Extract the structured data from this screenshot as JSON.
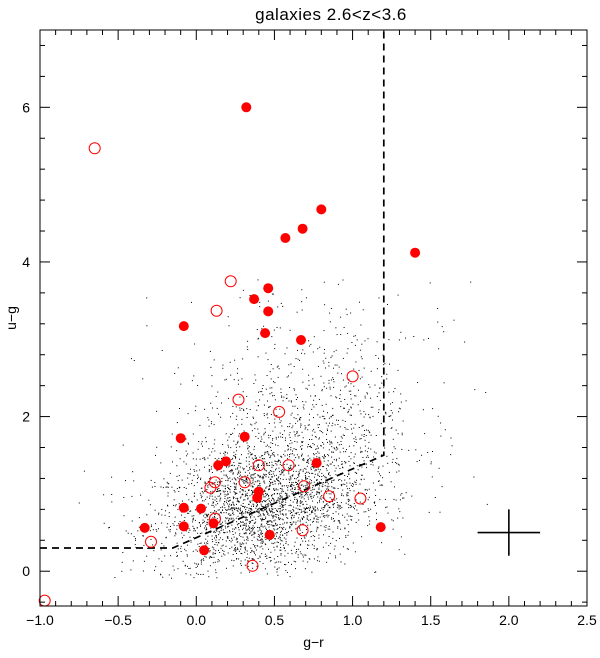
{
  "chart_data": {
    "type": "scatter",
    "title": "galaxies 2.6<z<3.6",
    "xlabel": "g−r",
    "ylabel": "u−g",
    "xlim": [
      -1.0,
      2.5
    ],
    "ylim": [
      -0.45,
      7.0
    ],
    "x_ticks": [
      -1.0,
      -0.5,
      0.0,
      0.5,
      1.0,
      1.5,
      2.0,
      2.5
    ],
    "x_tick_labels": [
      "−1.0",
      "−0.5",
      "0.0",
      "0.5",
      "1.0",
      "1.5",
      "2.0",
      "2.5"
    ],
    "y_ticks": [
      0,
      2,
      4,
      6
    ],
    "y_tick_labels": [
      "0",
      "2",
      "4",
      "6"
    ],
    "grid": false,
    "colors": {
      "highlight": "#ff0000",
      "background_points": "#000000",
      "axes": "#000000"
    },
    "series": [
      {
        "marker": "filled-circle",
        "points": [
          [
            0.32,
            6.0
          ],
          [
            0.8,
            4.68
          ],
          [
            1.4,
            4.12
          ],
          [
            0.68,
            4.43
          ],
          [
            0.57,
            4.31
          ],
          [
            0.46,
            3.66
          ],
          [
            0.37,
            3.52
          ],
          [
            0.46,
            3.36
          ],
          [
            -0.08,
            3.17
          ],
          [
            0.44,
            3.08
          ],
          [
            0.67,
            2.99
          ],
          [
            -0.1,
            1.72
          ],
          [
            0.31,
            1.74
          ],
          [
            0.19,
            1.42
          ],
          [
            0.14,
            1.37
          ],
          [
            0.77,
            1.4
          ],
          [
            0.4,
            1.03
          ],
          [
            0.39,
            0.95
          ],
          [
            -0.08,
            0.82
          ],
          [
            0.03,
            0.81
          ],
          [
            -0.33,
            0.56
          ],
          [
            -0.08,
            0.58
          ],
          [
            0.11,
            0.62
          ],
          [
            0.05,
            0.27
          ],
          [
            0.47,
            0.47
          ],
          [
            1.18,
            0.57
          ]
        ]
      },
      {
        "marker": "open-circle",
        "points": [
          [
            -0.65,
            5.47
          ],
          [
            0.22,
            3.75
          ],
          [
            0.13,
            3.37
          ],
          [
            1.0,
            2.52
          ],
          [
            0.27,
            2.22
          ],
          [
            0.53,
            2.06
          ],
          [
            0.4,
            1.37
          ],
          [
            0.59,
            1.37
          ],
          [
            0.12,
            1.15
          ],
          [
            0.09,
            1.08
          ],
          [
            0.31,
            1.15
          ],
          [
            0.69,
            1.1
          ],
          [
            0.85,
            0.97
          ],
          [
            1.05,
            0.94
          ],
          [
            0.12,
            0.68
          ],
          [
            0.68,
            0.53
          ],
          [
            -0.29,
            0.38
          ],
          [
            0.36,
            0.07
          ],
          [
            -0.97,
            -0.38
          ]
        ]
      }
    ],
    "background_points": {
      "marker": "dot",
      "density_center": [
        0.4,
        0.8
      ],
      "x_range": [
        -0.8,
        1.9
      ],
      "y_range": [
        -0.1,
        3.8
      ]
    },
    "annotations": {
      "selection_boundary": {
        "style": "dashed",
        "points": [
          [
            -1.0,
            0.3
          ],
          [
            -0.15,
            0.3
          ],
          [
            1.2,
            1.5
          ],
          [
            1.2,
            7.0
          ]
        ]
      },
      "error_bar_cross": {
        "center": [
          2.0,
          0.5
        ],
        "x_error": 0.2,
        "y_error": 0.3
      }
    }
  }
}
